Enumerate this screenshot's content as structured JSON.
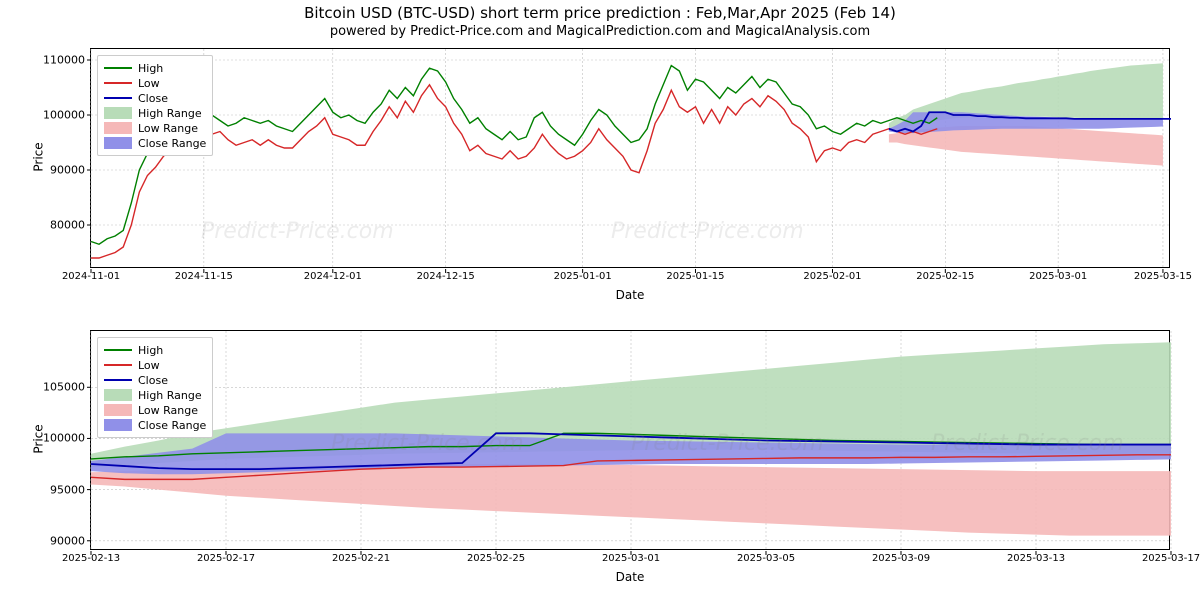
{
  "title": "Bitcoin USD (BTC-USD) short term price prediction : Feb,Mar,Apr 2025 (Feb 14)",
  "subtitle": "powered by Predict-Price.com and MagicalPrediction.com and MagicalAnalysis.com",
  "watermark": "Predict-Price.com",
  "colors": {
    "high_line": "#008000",
    "low_line": "#d62728",
    "close_line": "#0000b0",
    "high_area": "#b8dcb8",
    "low_area": "#f5b8b8",
    "close_area": "#9090e8",
    "grid": "#bfbfbf",
    "border": "#000000",
    "bg": "#ffffff"
  },
  "legend": {
    "high": "High",
    "low": "Low",
    "close": "Close",
    "high_range": "High Range",
    "low_range": "Low Range",
    "close_range": "Close Range"
  },
  "chart1": {
    "type": "line-with-range",
    "xlabel": "Date",
    "ylabel": "Price",
    "ylim": [
      72000,
      112000
    ],
    "yticks": [
      80000,
      90000,
      100000,
      110000
    ],
    "xlim": [
      0,
      134
    ],
    "xticks_pos": [
      0,
      14,
      30,
      44,
      61,
      75,
      92,
      106,
      120,
      133
    ],
    "xticks_lab": [
      "2024-11-01",
      "2024-11-15",
      "2024-12-01",
      "2024-12-15",
      "2025-01-01",
      "2025-01-15",
      "2025-02-01",
      "2025-02-15",
      "2025-03-01",
      "2025-03-15"
    ],
    "high": [
      77000,
      76500,
      77500,
      78000,
      79000,
      84000,
      90000,
      93000,
      95000,
      96000,
      98000,
      99500,
      98000,
      99000,
      99500,
      100000,
      99000,
      98000,
      98500,
      99500,
      99000,
      98500,
      99000,
      98000,
      97500,
      97000,
      98500,
      100000,
      101500,
      103000,
      100500,
      99500,
      100000,
      99000,
      98500,
      100500,
      102000,
      104500,
      103000,
      105000,
      103500,
      106500,
      108500,
      108000,
      106000,
      103000,
      101000,
      98500,
      99500,
      97500,
      96500,
      95500,
      97000,
      95500,
      96000,
      99500,
      100500,
      98000,
      96500,
      95500,
      94500,
      96500,
      99000,
      101000,
      100000,
      98000,
      96500,
      95000,
      95500,
      97500,
      102000,
      105500,
      109000,
      108000,
      104500,
      106500,
      106000,
      104500,
      103000,
      105000,
      104000,
      105500,
      107000,
      105000,
      106500,
      106000,
      104000,
      102000,
      101500,
      100000,
      97500,
      98000,
      97000,
      96500,
      97500,
      98500,
      98000,
      99000,
      98500,
      99000,
      99500,
      99000,
      98500,
      99000,
      98500,
      99500
    ],
    "low": [
      74000,
      74000,
      74500,
      75000,
      76000,
      80000,
      86000,
      89000,
      90500,
      92500,
      94000,
      95500,
      94000,
      96000,
      96000,
      96500,
      97000,
      95500,
      94500,
      95000,
      95500,
      94500,
      95500,
      94500,
      94000,
      94000,
      95500,
      97000,
      98000,
      99500,
      96500,
      96000,
      95500,
      94500,
      94500,
      97000,
      99000,
      101500,
      99500,
      102500,
      100500,
      103500,
      105500,
      103000,
      101500,
      98500,
      96500,
      93500,
      94500,
      93000,
      92500,
      92000,
      93500,
      92000,
      92500,
      94000,
      96500,
      94500,
      93000,
      92000,
      92500,
      93500,
      95000,
      97500,
      95500,
      94000,
      92500,
      90000,
      89500,
      93500,
      98500,
      101000,
      104500,
      101500,
      100500,
      101500,
      98500,
      101000,
      98500,
      101500,
      100000,
      102000,
      103000,
      101500,
      103500,
      102500,
      101000,
      98500,
      97500,
      96000,
      91500,
      93500,
      94000,
      93500,
      95000,
      95500,
      95000,
      96500,
      97000,
      97500,
      97000,
      96500,
      97000,
      96500,
      97000,
      97500
    ],
    "close": [
      null,
      null,
      null,
      null,
      null,
      null,
      null,
      null,
      null,
      null,
      null,
      null,
      null,
      null,
      null,
      null,
      null,
      null,
      null,
      null,
      null,
      null,
      null,
      null,
      null,
      null,
      null,
      null,
      null,
      null,
      null,
      null,
      null,
      null,
      null,
      null,
      null,
      null,
      null,
      null,
      null,
      null,
      null,
      null,
      null,
      null,
      null,
      null,
      null,
      null,
      null,
      null,
      null,
      null,
      null,
      null,
      null,
      null,
      null,
      null,
      null,
      null,
      null,
      null,
      null,
      null,
      null,
      null,
      null,
      null,
      null,
      null,
      null,
      null,
      null,
      null,
      null,
      null,
      null,
      null,
      null,
      null,
      null,
      null,
      null,
      null,
      null,
      null,
      null,
      null,
      null,
      null,
      null,
      null,
      null,
      null,
      null,
      null,
      null,
      97500,
      97000,
      97500,
      97000,
      98000,
      100500,
      100500,
      100500,
      100000,
      100000,
      100000,
      99800,
      99800,
      99600,
      99600,
      99500,
      99500,
      99400,
      99400,
      99400,
      99400,
      99400,
      99400,
      99300,
      99300,
      99300,
      99300,
      99300,
      99300,
      99300,
      99300,
      99300,
      99300,
      99300,
      99300,
      99300
    ],
    "range_start": 99,
    "high_hi": [
      98500,
      99500,
      100000,
      101000,
      101500,
      102000,
      102500,
      103000,
      103500,
      104000,
      104200,
      104500,
      104800,
      105000,
      105200,
      105500,
      105800,
      106000,
      106200,
      106500,
      106700,
      107000,
      107200,
      107500,
      107700,
      108000,
      108200,
      108400,
      108600,
      108800,
      109000,
      109100,
      109200,
      109300,
      109400
    ],
    "high_lo": [
      97000,
      97500,
      97800,
      98200,
      98500,
      98700,
      99000,
      99200,
      99400,
      99500,
      99600,
      99700,
      99800,
      99800,
      99800,
      99800,
      99800,
      99800,
      99750,
      99700,
      99650,
      99600,
      99550,
      99500,
      99450,
      99400,
      99400,
      99400,
      99400,
      99400,
      99400,
      99400,
      99400,
      99400,
      99400
    ],
    "low_hi": [
      96500,
      96700,
      97000,
      97200,
      97400,
      97500,
      97700,
      97800,
      97900,
      98000,
      98000,
      98000,
      98000,
      98000,
      98000,
      98000,
      98000,
      98000,
      97900,
      97800,
      97700,
      97600,
      97500,
      97400,
      97300,
      97200,
      97100,
      97000,
      96900,
      96800,
      96700,
      96600,
      96500,
      96400,
      96300
    ],
    "low_lo": [
      95000,
      95000,
      94700,
      94500,
      94300,
      94100,
      93900,
      93700,
      93500,
      93300,
      93200,
      93100,
      93000,
      92900,
      92800,
      92700,
      92600,
      92500,
      92400,
      92300,
      92200,
      92100,
      92000,
      91900,
      91800,
      91700,
      91600,
      91500,
      91400,
      91300,
      91200,
      91100,
      91000,
      90900,
      90800
    ],
    "close_hi": [
      97500,
      98200,
      99000,
      100500,
      100500,
      100500,
      100500,
      100500,
      100500,
      100500,
      100400,
      100300,
      100200,
      100100,
      100000,
      99900,
      99800,
      99750,
      99700,
      99650,
      99600,
      99550,
      99500,
      99450,
      99400,
      99400,
      99400,
      99400,
      99400,
      99400,
      99400,
      99400,
      99400,
      99400,
      99400
    ],
    "close_lo": [
      97000,
      96800,
      96700,
      96700,
      96800,
      96900,
      97000,
      97100,
      97200,
      97250,
      97300,
      97350,
      97400,
      97450,
      97500,
      97500,
      97500,
      97500,
      97500,
      97500,
      97500,
      97500,
      97500,
      97500,
      97500,
      97500,
      97500,
      97550,
      97600,
      97650,
      97700,
      97750,
      97800,
      97850,
      97900
    ]
  },
  "chart2": {
    "type": "line-with-range",
    "xlabel": "Date",
    "ylabel": "Price",
    "ylim": [
      89000,
      110500
    ],
    "yticks": [
      90000,
      95000,
      100000,
      105000
    ],
    "xlim": [
      0,
      32
    ],
    "xticks_pos": [
      0,
      4,
      8,
      12,
      16,
      20,
      24,
      28,
      32
    ],
    "xticks_lab": [
      "2025-02-13",
      "2025-02-17",
      "2025-02-21",
      "2025-02-25",
      "2025-03-01",
      "2025-03-05",
      "2025-03-09",
      "2025-03-13",
      "2025-03-17"
    ],
    "high": [
      98000,
      98200,
      98300,
      98500,
      98600,
      98700,
      98800,
      98900,
      99000,
      99100,
      99200,
      99200,
      99300,
      99300,
      100500,
      100500,
      100400,
      100300,
      100200,
      100100,
      100000,
      99900,
      99800,
      99750,
      99700,
      99650,
      99600,
      99550,
      99500,
      99450,
      99400,
      99400,
      99400
    ],
    "low": [
      96200,
      96000,
      96000,
      96000,
      96200,
      96400,
      96600,
      96800,
      97000,
      97100,
      97200,
      97200,
      97250,
      97300,
      97350,
      97800,
      97850,
      97900,
      97950,
      98000,
      98050,
      98100,
      98100,
      98100,
      98150,
      98150,
      98200,
      98200,
      98250,
      98300,
      98350,
      98400,
      98400
    ],
    "close": [
      97500,
      97300,
      97100,
      97000,
      97000,
      97000,
      97100,
      97200,
      97300,
      97400,
      97500,
      97600,
      100500,
      100500,
      100400,
      100300,
      100200,
      100100,
      100000,
      99900,
      99800,
      99750,
      99700,
      99650,
      99600,
      99550,
      99500,
      99450,
      99400,
      99400,
      99400,
      99400,
      99400
    ],
    "high_hi": [
      98500,
      99200,
      99800,
      100500,
      101000,
      101500,
      102000,
      102500,
      103000,
      103500,
      103800,
      104100,
      104400,
      104700,
      105000,
      105300,
      105600,
      105900,
      106200,
      106500,
      106800,
      107100,
      107400,
      107700,
      108000,
      108200,
      108400,
      108600,
      108800,
      109000,
      109200,
      109300,
      109400
    ],
    "high_lo": [
      97200,
      97400,
      97600,
      97800,
      98000,
      98100,
      98200,
      98300,
      98400,
      98500,
      98550,
      98600,
      98650,
      98700,
      98750,
      98800,
      98850,
      98900,
      98900,
      98900,
      98900,
      98850,
      98800,
      98750,
      98700,
      98650,
      98600,
      98550,
      98500,
      98500,
      98500,
      98500,
      98500
    ],
    "low_hi": [
      96700,
      96800,
      96900,
      97000,
      97100,
      97200,
      97300,
      97350,
      97400,
      97450,
      97500,
      97500,
      97500,
      97500,
      97500,
      97450,
      97400,
      97350,
      97300,
      97250,
      97200,
      97150,
      97100,
      97050,
      97000,
      96950,
      96900,
      96850,
      96800,
      96800,
      96800,
      96800,
      96800
    ],
    "low_lo": [
      95500,
      95300,
      95000,
      94700,
      94400,
      94200,
      94000,
      93800,
      93600,
      93400,
      93200,
      93050,
      92900,
      92750,
      92600,
      92450,
      92300,
      92150,
      92000,
      91850,
      91700,
      91550,
      91400,
      91250,
      91100,
      90950,
      90800,
      90700,
      90600,
      90500,
      90500,
      90500,
      90500
    ],
    "close_hi": [
      97800,
      98200,
      98600,
      99000,
      100500,
      100500,
      100500,
      100500,
      100500,
      100500,
      100400,
      100300,
      100200,
      100100,
      100000,
      99900,
      99800,
      99750,
      99700,
      99650,
      99600,
      99550,
      99500,
      99450,
      99400,
      99400,
      99400,
      99400,
      99400,
      99400,
      99400,
      99400,
      99400
    ],
    "close_lo": [
      96800,
      96600,
      96500,
      96500,
      96600,
      96700,
      96800,
      96900,
      97000,
      97100,
      97150,
      97200,
      97250,
      97300,
      97350,
      97400,
      97450,
      97500,
      97500,
      97500,
      97500,
      97500,
      97500,
      97500,
      97550,
      97600,
      97650,
      97700,
      97750,
      97800,
      97850,
      97900,
      97950
    ]
  }
}
